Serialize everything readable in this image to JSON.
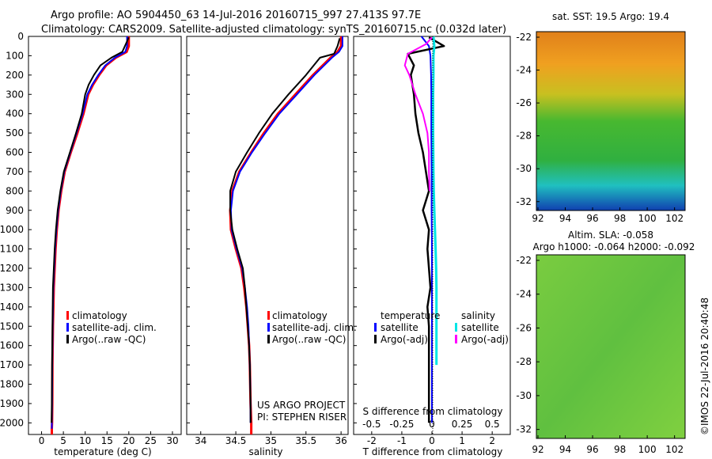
{
  "header": {
    "title_line1": "Argo profile: AO 5904450_63 14-Jul-2016 20160715_997 27.413S 97.7E",
    "title_line2": "Climatology: CARS2009. Satellite-adjusted climatology: synTS_20160715.nc (0.032d later)"
  },
  "colors": {
    "climatology": "#ff0000",
    "satellite": "#0000ff",
    "argo": "#000000",
    "sal_satellite": "#00e5e5",
    "sal_argo": "#ff00ff"
  },
  "depth_ticks": [
    "0",
    "100",
    "200",
    "300",
    "400",
    "500",
    "600",
    "700",
    "800",
    "900",
    "1000",
    "1100",
    "1200",
    "1300",
    "1400",
    "1500",
    "1600",
    "1700",
    "1800",
    "1900",
    "2000"
  ],
  "panels": {
    "temperature": {
      "xlabel": "temperature (deg C)",
      "xticks": [
        "0",
        "5",
        "10",
        "15",
        "20",
        "25",
        "30"
      ],
      "legend": [
        "climatology",
        "satellite-adj. clim.",
        "Argo(..raw -QC)"
      ]
    },
    "salinity": {
      "xlabel": "salinity",
      "xticks": [
        "34",
        "34.5",
        "35",
        "35.5",
        "36"
      ],
      "legend": [
        "climatology",
        "satellite-adj. clim.",
        "Argo(..raw -QC)"
      ],
      "credit_line1": "US ARGO PROJECT",
      "credit_line2": "PI: STEPHEN RISER"
    },
    "difference": {
      "xlabel": "T difference from climatology",
      "xticks": [
        "-2",
        "-1",
        "0",
        "1",
        "2"
      ],
      "top_label": "S difference from climatology",
      "top_ticks": [
        "-0.5",
        "-0.25",
        "0",
        "0.25",
        "0.5"
      ],
      "legend_temp_header": "temperature",
      "legend_sal_header": "salinity",
      "legend_temp": [
        "satellite",
        "Argo(-adj)"
      ],
      "legend_sal": [
        "satellite",
        "Argo(-adj)"
      ]
    },
    "sst_map": {
      "title": "sat. SST: 19.5  Argo: 19.4",
      "yticks": [
        "-22",
        "-24",
        "-26",
        "-28",
        "-30",
        "-32"
      ],
      "xticks": [
        "92",
        "94",
        "96",
        "98",
        "100",
        "102"
      ]
    },
    "sla_map": {
      "title1": "Altim. SLA: -0.058",
      "title2": "Argo h1000: -0.064 h2000: -0.092",
      "yticks": [
        "-22",
        "-24",
        "-26",
        "-28",
        "-30",
        "-32"
      ],
      "xticks": [
        "92",
        "94",
        "96",
        "98",
        "100",
        "102"
      ],
      "credit": "©IMOS 22-Jul-2016 20:40:48"
    }
  },
  "chart_data": [
    {
      "type": "line",
      "title": "",
      "xlabel": "temperature (deg C)",
      "ylabel": "",
      "xlim": [
        -3,
        32
      ],
      "ylim": [
        2060,
        0
      ],
      "series": [
        {
          "name": "climatology",
          "x": [
            20,
            20,
            19.5,
            17,
            14.8,
            13.2,
            11.8,
            10.7,
            9.6,
            8.2,
            6.7,
            5.3,
            4.5,
            3.9,
            3.5,
            3.2,
            3.0,
            2.8,
            2.6,
            2.5,
            2.45,
            2.4,
            2.35,
            2.35
          ],
          "y": [
            0,
            50,
            80,
            110,
            150,
            200,
            250,
            300,
            400,
            500,
            600,
            700,
            800,
            900,
            1000,
            1100,
            1200,
            1300,
            1500,
            1700,
            1900,
            2000,
            2030,
            2060
          ]
        },
        {
          "name": "satellite-adj. clim.",
          "x": [
            19.6,
            19.6,
            19.2,
            16.8,
            14.6,
            13.0,
            11.6,
            10.5,
            9.4,
            8.0,
            6.6,
            5.2,
            4.4,
            3.8,
            3.4,
            3.1,
            2.9,
            2.7,
            2.55,
            2.45,
            2.4,
            2.35,
            2.35
          ],
          "y": [
            0,
            50,
            80,
            110,
            150,
            200,
            250,
            300,
            400,
            500,
            600,
            700,
            800,
            900,
            1000,
            1100,
            1200,
            1300,
            1500,
            1700,
            1900,
            2000,
            2030
          ]
        },
        {
          "name": "Argo(..raw -QC)",
          "x": [
            20.0,
            19.3,
            18.5,
            16,
            13.5,
            12,
            10.8,
            10.0,
            9.2,
            7.9,
            6.5,
            5.1,
            4.3,
            3.7,
            3.3,
            3.0,
            2.8,
            2.6,
            2.5,
            2.4,
            2.35,
            2.3
          ],
          "y": [
            5,
            40,
            80,
            110,
            150,
            200,
            250,
            300,
            400,
            500,
            600,
            700,
            800,
            900,
            1000,
            1100,
            1200,
            1300,
            1500,
            1700,
            1900,
            2000
          ]
        }
      ]
    },
    {
      "type": "line",
      "title": "",
      "xlabel": "salinity",
      "ylabel": "",
      "xlim": [
        33.8,
        36.1
      ],
      "ylim": [
        2060,
        0
      ],
      "series": [
        {
          "name": "climatology",
          "x": [
            36.0,
            36.0,
            35.95,
            35.85,
            35.6,
            35.35,
            35.1,
            34.9,
            34.72,
            34.55,
            34.45,
            34.42,
            34.43,
            34.5,
            34.58,
            34.62,
            34.65,
            34.67,
            34.69,
            34.7,
            34.71,
            34.72,
            34.72
          ],
          "y": [
            0,
            50,
            80,
            110,
            200,
            300,
            400,
            500,
            600,
            700,
            800,
            900,
            1000,
            1100,
            1200,
            1300,
            1400,
            1500,
            1600,
            1700,
            1900,
            2000,
            2060
          ]
        },
        {
          "name": "satellite-adj. clim.",
          "x": [
            36.02,
            36.02,
            35.97,
            35.87,
            35.62,
            35.37,
            35.12,
            34.92,
            34.73,
            34.56,
            34.46,
            34.43,
            34.44,
            34.51,
            34.59,
            34.63,
            34.66,
            34.68,
            34.69,
            34.7,
            34.71,
            34.71
          ],
          "y": [
            0,
            50,
            80,
            110,
            200,
            300,
            400,
            500,
            600,
            700,
            800,
            900,
            1000,
            1100,
            1200,
            1300,
            1400,
            1500,
            1600,
            1700,
            1900,
            2000
          ]
        },
        {
          "name": "Argo(..raw -QC)",
          "x": [
            35.98,
            35.95,
            35.9,
            35.7,
            35.5,
            35.25,
            35.02,
            34.83,
            34.66,
            34.5,
            34.42,
            34.42,
            34.45,
            34.52,
            34.6,
            34.63,
            34.65,
            34.67,
            34.69,
            34.7,
            34.71,
            34.71
          ],
          "y": [
            10,
            50,
            90,
            110,
            200,
            300,
            400,
            500,
            600,
            700,
            800,
            900,
            1000,
            1100,
            1200,
            1300,
            1400,
            1500,
            1600,
            1700,
            1900,
            2000
          ]
        }
      ]
    },
    {
      "type": "line",
      "title": "",
      "xlabel": "T difference from climatology",
      "ylabel": "",
      "xlim": [
        -2.6,
        2.6
      ],
      "ylim": [
        2060,
        0
      ],
      "series": [
        {
          "name": "temperature satellite",
          "x": [
            -0.35,
            -0.1,
            -0.05,
            -0.03,
            -0.02,
            -0.02,
            -0.01,
            -0.01,
            0,
            0,
            0,
            0,
            0,
            0
          ],
          "y": [
            0,
            50,
            100,
            200,
            300,
            500,
            700,
            900,
            1100,
            1300,
            1500,
            1700,
            1900,
            2000
          ]
        },
        {
          "name": "temperature Argo(-adj)",
          "x": [
            -0.1,
            0.4,
            -0.8,
            -0.6,
            -0.7,
            -0.6,
            -0.55,
            -0.45,
            -0.3,
            -0.2,
            -0.1,
            -0.3,
            -0.1,
            -0.15,
            -0.1,
            -0.05,
            -0.15,
            -0.1,
            -0.1,
            -0.1,
            -0.1
          ],
          "y": [
            5,
            50,
            90,
            150,
            200,
            300,
            400,
            500,
            600,
            700,
            800,
            900,
            1000,
            1100,
            1200,
            1300,
            1400,
            1500,
            1700,
            1900,
            2000
          ]
        },
        {
          "name": "salinity satellite",
          "x": [
            0.05,
            0.08,
            0.05,
            0.05,
            0.04,
            0.04,
            0.05,
            0.06,
            0.08,
            0.1,
            0.12,
            0.14,
            0.15,
            0.15,
            0.15,
            0.15,
            0.15
          ],
          "y": [
            0,
            50,
            100,
            200,
            300,
            500,
            700,
            800,
            900,
            1000,
            1100,
            1200,
            1300,
            1400,
            1500,
            1600,
            1700
          ]
        },
        {
          "name": "salinity Argo(-adj)",
          "x": [
            0.0,
            -0.2,
            -0.8,
            -0.9,
            -0.75,
            -0.55,
            -0.3,
            -0.15,
            -0.1,
            -0.1,
            -0.08
          ],
          "y": [
            5,
            40,
            90,
            150,
            200,
            300,
            400,
            500,
            600,
            700,
            800
          ]
        }
      ]
    }
  ]
}
